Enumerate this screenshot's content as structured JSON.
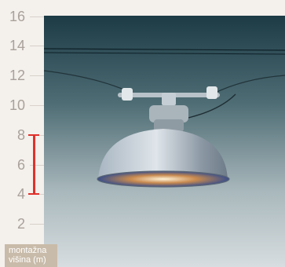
{
  "height_scale": {
    "ticks": [
      "2",
      "4",
      "6",
      "8",
      "10",
      "12",
      "14",
      "16"
    ],
    "mounting_range_m": [
      4,
      8
    ],
    "caption_line1": "montažna",
    "caption_line2": "višina (m)",
    "colors": {
      "range_bar": "#e0312b",
      "tick_text": "#a9a19b",
      "caption_bg": "#c9bba9"
    }
  },
  "image": {
    "subject": "industrial-high-bay-lamp-icon",
    "colors": {
      "background_top": "#1c3b45",
      "background_bottom": "#d7dde0",
      "reflector": "#8c9aa6"
    }
  }
}
